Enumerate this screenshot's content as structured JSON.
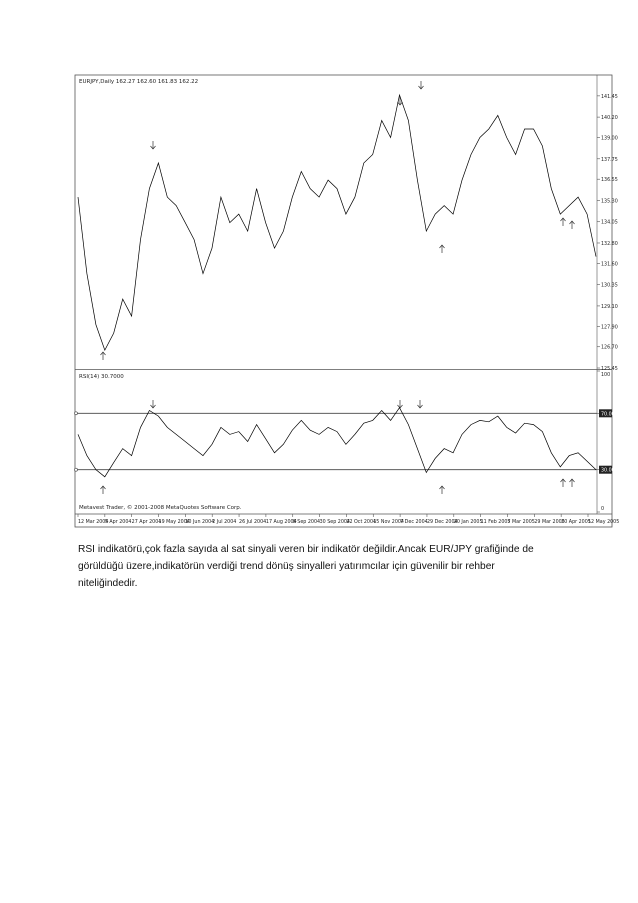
{
  "chart_data": [
    {
      "type": "line",
      "title": "EURJPY,Daily  162.27 162.60 161.83 162.22",
      "series": [
        {
          "name": "EURJPY",
          "color": "#000000",
          "values": [
            135.5,
            131,
            128,
            126.5,
            127.5,
            129.5,
            128.5,
            133,
            136,
            137.5,
            135.5,
            135,
            134,
            133,
            131,
            132.5,
            135.5,
            134,
            134.5,
            133.5,
            136,
            134,
            132.5,
            133.5,
            135.5,
            137,
            136,
            135.5,
            136.5,
            136,
            134.5,
            135.5,
            137.5,
            138,
            140,
            139,
            141.5,
            140,
            136.5,
            133.5,
            134.5,
            135,
            134.5,
            136.5,
            138,
            139,
            139.5,
            140.3,
            139,
            138,
            139.5,
            139.5,
            138.5,
            136,
            134.5,
            135,
            135.5,
            134.5,
            132
          ]
        }
      ],
      "ylim": [
        125.45,
        142.5
      ],
      "yticks": [
        141.45,
        {
          "value": 140.2,
          "label": "140.20"
        },
        {
          "value": 139,
          "label": "139.00"
        },
        137.75,
        136.55,
        {
          "value": 135.3,
          "label": "135.30"
        },
        134.05,
        {
          "value": 132.8,
          "label": "132.80"
        },
        {
          "value": 131.6,
          "label": "131.60"
        },
        130.35,
        {
          "value": 129.1,
          "label": "129.10"
        },
        {
          "value": 127.9,
          "label": "127.90"
        },
        {
          "value": 126.7,
          "label": "126.70"
        },
        125.45
      ]
    },
    {
      "type": "line",
      "title": "RSI(14) 30.7000",
      "annotation": "Metavest Trader, © 2001-2008 MetaQuotes Software Corp.",
      "series": [
        {
          "name": "RSI(14)",
          "color": "#000000",
          "values": [
            55,
            40,
            30,
            25,
            35,
            45,
            40,
            60,
            72,
            68,
            60,
            55,
            50,
            45,
            40,
            48,
            60,
            55,
            57,
            50,
            62,
            52,
            42,
            48,
            58,
            65,
            58,
            55,
            60,
            57,
            48,
            55,
            63,
            65,
            72,
            65,
            74,
            62,
            45,
            28,
            38,
            45,
            42,
            55,
            62,
            65,
            64,
            68,
            60,
            56,
            63,
            62,
            57,
            42,
            32,
            40,
            42,
            36,
            30
          ]
        }
      ],
      "ylim": [
        0,
        100
      ],
      "yticks": [
        100,
        {
          "value": 70,
          "label": "70.00"
        },
        {
          "value": 30,
          "label": "30.00"
        },
        0
      ],
      "xticklabels": [
        "12 Mar 2004",
        "5 Apr 2004",
        "27 Apr 2004",
        "19 May 2004",
        "10 Jun 2004",
        "2 Jul 2004",
        "26 Jul 2004",
        "17 Aug 2004",
        "8 Sep 2004",
        "30 Sep 2004",
        "22 Oct 2004",
        "15 Nov 2004",
        "7 Dec 2004",
        "29 Dec 2004",
        "20 Jan 2005",
        "11 Feb 2005",
        "7 Mar 2005",
        "29 Mar 2005",
        "20 Apr 2005",
        "12 May 2005"
      ]
    }
  ],
  "paragraph": {
    "lines": [
      "RSI indikatörü,çok fazla sayıda al sat sinyali veren bir indikatör değildir.Ancak EUR/JPY grafiğinde de",
      "görüldüğü üzere,indikatörün verdiği trend dönüş sinyalleri yatırımcılar için güvenilir bir rehber",
      "niteliğindedir."
    ]
  }
}
